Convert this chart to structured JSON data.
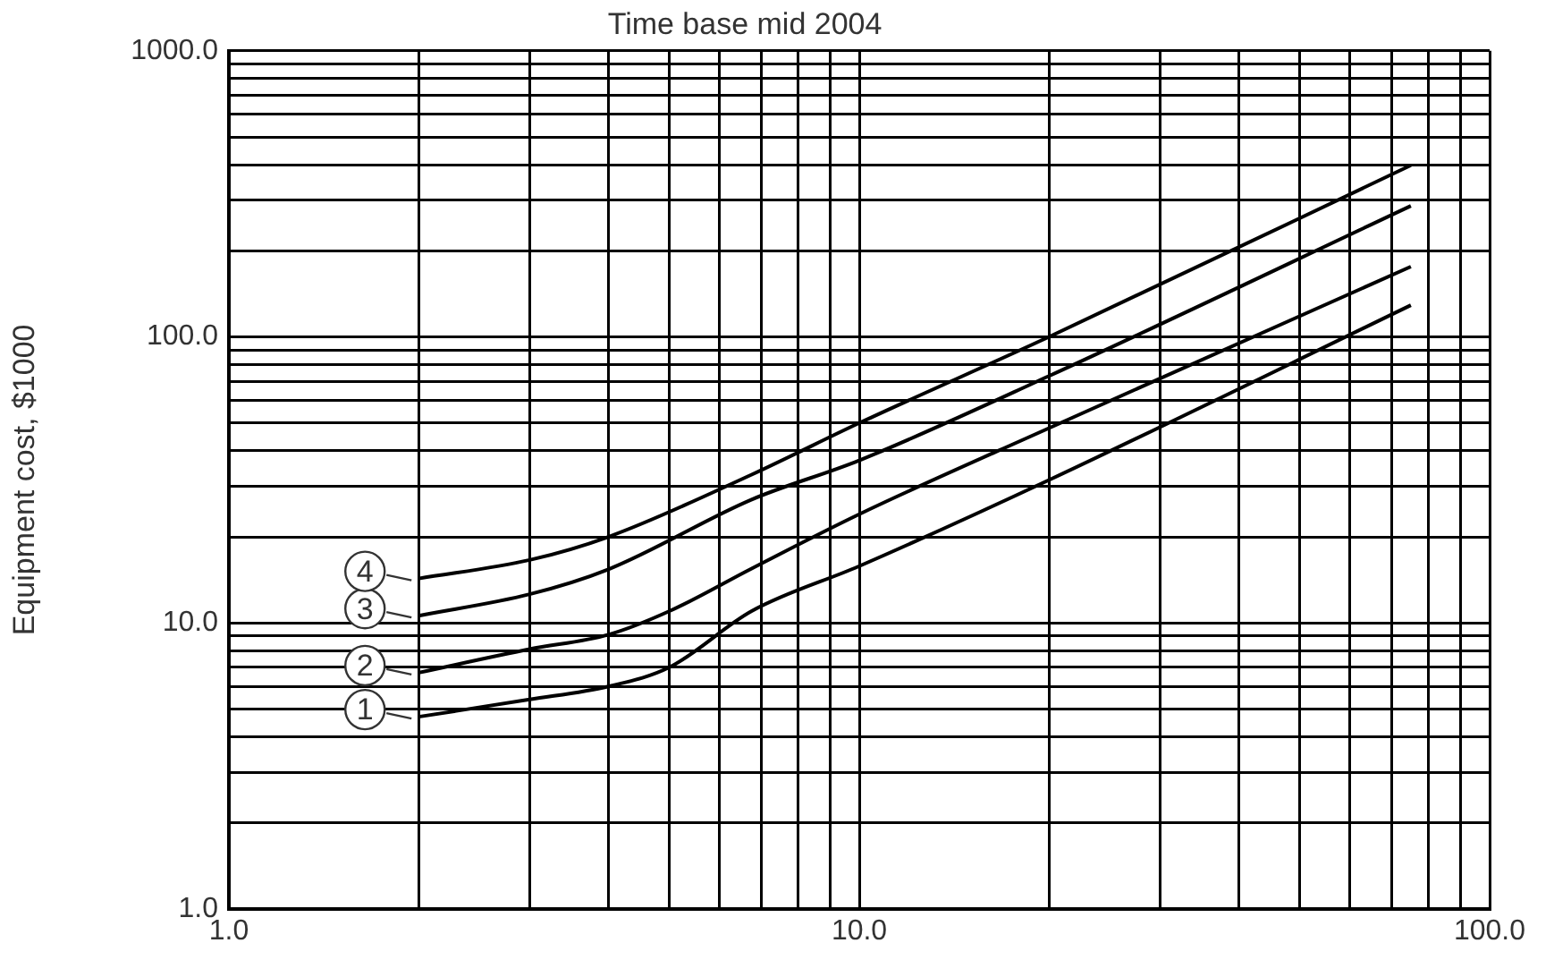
{
  "chart_data": {
    "type": "line",
    "title": "Time base mid 2004",
    "ylabel": "Equipment cost, $1000",
    "log": "xy",
    "grid": true,
    "legend": false,
    "marker": "none",
    "line_style": "solid",
    "xlim": [
      1,
      100
    ],
    "xticks": [
      {
        "value": 1,
        "label": "1.0"
      },
      {
        "value": 2,
        "label": null
      },
      {
        "value": 3,
        "label": null
      },
      {
        "value": 4,
        "label": null
      },
      {
        "value": 5,
        "label": null
      },
      {
        "value": 6,
        "label": null
      },
      {
        "value": 7,
        "label": null
      },
      {
        "value": 8,
        "label": null
      },
      {
        "value": 9,
        "label": null
      },
      {
        "value": 10,
        "label": "10.0"
      },
      {
        "value": 20,
        "label": null
      },
      {
        "value": 30,
        "label": null
      },
      {
        "value": 40,
        "label": null
      },
      {
        "value": 50,
        "label": null
      },
      {
        "value": 60,
        "label": null
      },
      {
        "value": 70,
        "label": null
      },
      {
        "value": 80,
        "label": null
      },
      {
        "value": 90,
        "label": null
      },
      {
        "value": 100,
        "label": "100.0"
      }
    ],
    "ylim": [
      1,
      1000
    ],
    "yticks": [
      {
        "value": 1,
        "label": "1.0"
      },
      {
        "value": 2,
        "label": null
      },
      {
        "value": 3,
        "label": null
      },
      {
        "value": 4,
        "label": null
      },
      {
        "value": 5,
        "label": null
      },
      {
        "value": 6,
        "label": null
      },
      {
        "value": 7,
        "label": null
      },
      {
        "value": 8,
        "label": null
      },
      {
        "value": 9,
        "label": null
      },
      {
        "value": 10,
        "label": "10.0"
      },
      {
        "value": 20,
        "label": null
      },
      {
        "value": 30,
        "label": null
      },
      {
        "value": 40,
        "label": null
      },
      {
        "value": 50,
        "label": null
      },
      {
        "value": 60,
        "label": null
      },
      {
        "value": 70,
        "label": null
      },
      {
        "value": 80,
        "label": null
      },
      {
        "value": 90,
        "label": null
      },
      {
        "value": 100,
        "label": "100.0"
      },
      {
        "value": 200,
        "label": null
      },
      {
        "value": 300,
        "label": null
      },
      {
        "value": 400,
        "label": null
      },
      {
        "value": 500,
        "label": null
      },
      {
        "value": 600,
        "label": null
      },
      {
        "value": 700,
        "label": null
      },
      {
        "value": 800,
        "label": null
      },
      {
        "value": 900,
        "label": null
      },
      {
        "value": 1000,
        "label": "1000.0"
      }
    ],
    "series": [
      {
        "name": "1",
        "color": "#000000",
        "x": [
          2,
          3,
          4,
          5,
          6.75,
          10,
          20,
          75
        ],
        "values": [
          4.7,
          5.4,
          6,
          7,
          11,
          15.8,
          31.6,
          129
        ]
      },
      {
        "name": "2",
        "color": "#000000",
        "x": [
          2,
          3,
          4,
          5,
          6.75,
          10,
          20,
          75
        ],
        "values": [
          6.7,
          8.1,
          9.1,
          11,
          15.5,
          24,
          48,
          176
        ]
      },
      {
        "name": "3",
        "color": "#000000",
        "x": [
          2,
          3,
          4,
          6.75,
          10,
          20,
          75
        ],
        "values": [
          10.6,
          12.6,
          15.4,
          27,
          37,
          73,
          287
        ]
      },
      {
        "name": "4",
        "color": "#000000",
        "x": [
          2,
          3,
          4,
          6.75,
          10,
          20,
          75
        ],
        "values": [
          14.3,
          16.6,
          20,
          33,
          50,
          100,
          398
        ]
      }
    ]
  }
}
